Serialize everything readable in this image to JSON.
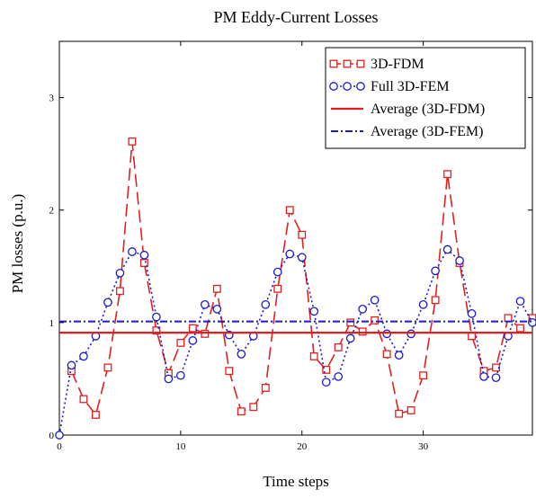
{
  "chart_data": {
    "type": "line",
    "title": "PM Eddy-Current Losses",
    "xlabel": "Time steps",
    "ylabel": "PM losses (p.u.)",
    "xlim": [
      0,
      39
    ],
    "ylim": [
      0,
      3.5
    ],
    "xticks": [
      0,
      10,
      20,
      30
    ],
    "yticks": [
      0,
      1,
      2,
      3
    ],
    "legend_position": "top-right",
    "grid": false,
    "series": [
      {
        "name": "3D-FDM",
        "color": "#e02020",
        "style": "dashed",
        "marker": "square",
        "x": [
          1,
          2,
          3,
          4,
          5,
          6,
          7,
          8,
          9,
          10,
          11,
          12,
          13,
          14,
          15,
          16,
          17,
          18,
          19,
          20,
          21,
          22,
          23,
          24,
          25,
          26,
          27,
          28,
          29,
          30,
          31,
          32,
          33,
          34,
          35,
          36,
          37,
          38,
          39
        ],
        "y": [
          0.57,
          0.32,
          0.18,
          0.6,
          1.28,
          2.61,
          1.53,
          0.93,
          0.55,
          0.82,
          0.95,
          0.9,
          1.3,
          0.57,
          0.21,
          0.25,
          0.42,
          1.3,
          2.0,
          1.78,
          0.7,
          0.58,
          0.78,
          1.0,
          0.92,
          1.02,
          0.72,
          0.19,
          0.22,
          0.53,
          1.2,
          2.32,
          1.53,
          0.88,
          0.57,
          0.6,
          1.04,
          0.95,
          1.04
        ]
      },
      {
        "name": "Full 3D-FEM",
        "color": "#1a1acc",
        "style": "dotted",
        "marker": "circle",
        "x": [
          0,
          1,
          2,
          3,
          4,
          5,
          6,
          7,
          8,
          9,
          10,
          11,
          12,
          13,
          14,
          15,
          16,
          17,
          18,
          19,
          20,
          21,
          22,
          23,
          24,
          25,
          26,
          27,
          28,
          29,
          30,
          31,
          32,
          33,
          34,
          35,
          36,
          37,
          38,
          39
        ],
        "y": [
          0.0,
          0.62,
          0.7,
          0.88,
          1.18,
          1.44,
          1.63,
          1.6,
          1.05,
          0.5,
          0.53,
          0.84,
          1.16,
          1.12,
          0.89,
          0.72,
          0.88,
          1.16,
          1.45,
          1.61,
          1.58,
          1.1,
          0.47,
          0.52,
          0.86,
          1.12,
          1.2,
          0.9,
          0.71,
          0.9,
          1.16,
          1.46,
          1.65,
          1.55,
          1.08,
          0.52,
          0.51,
          0.88,
          1.19,
          1.0
        ]
      },
      {
        "name": "Average (3D-FDM)",
        "color": "#e02020",
        "style": "solid",
        "marker": "none",
        "x": [
          0,
          39
        ],
        "y": [
          0.91,
          0.91
        ]
      },
      {
        "name": "Average (3D-FEM)",
        "color": "#1a1acc",
        "style": "dashdot",
        "marker": "none",
        "x": [
          0,
          39
        ],
        "y": [
          1.01,
          1.01
        ]
      }
    ]
  }
}
